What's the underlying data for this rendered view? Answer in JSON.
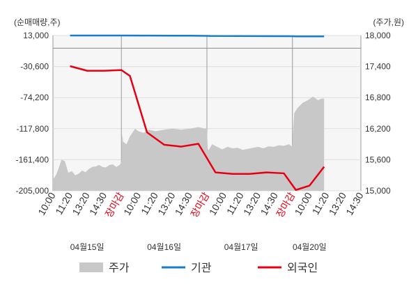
{
  "chart_data": {
    "type": "line",
    "y_left_unit": "(순매매량,주)",
    "y_right_unit": "(주가,원)",
    "y_left_ticks": [
      "13,000",
      "-30,600",
      "-74,200",
      "-117,800",
      "-161,400",
      "-205,000"
    ],
    "y_right_ticks": [
      "18,000",
      "17,400",
      "16,800",
      "16,200",
      "15,600",
      "15,000"
    ],
    "ylim_left": [
      -205000,
      13000
    ],
    "ylim_right": [
      15000,
      18000
    ],
    "x_ticks": [
      "10:00",
      "11:20",
      "13:20",
      "14:30",
      "장마감",
      "10:00",
      "11:20",
      "13:20",
      "14:30",
      "장마감",
      "10:00",
      "11:20",
      "13:20",
      "14:30",
      "장마감",
      "10:00",
      "11:20",
      "13:20",
      "14:30"
    ],
    "dates": [
      "04월15일",
      "04월16일",
      "04월17일",
      "04월20일"
    ],
    "grid": true,
    "legend_position": "bottom",
    "series": [
      {
        "name": "주가",
        "kind": "area",
        "axis": "right",
        "color": "#c8c8c8",
        "x": [
          0,
          0.2,
          0.35,
          0.5,
          0.7,
          0.9,
          1.1,
          1.3,
          1.5,
          1.7,
          1.9,
          2.1,
          2.3,
          2.5,
          2.7,
          2.9,
          3.1,
          3.3,
          3.5,
          3.7,
          3.9,
          4.0,
          4.05,
          4.1,
          4.3,
          4.5,
          4.8,
          5.0,
          5.3,
          5.6,
          6.0,
          6.5,
          7.0,
          7.5,
          8.0,
          8.5,
          8.9,
          9.0,
          9.05,
          9.1,
          9.3,
          9.6,
          9.9,
          10.2,
          10.5,
          10.8,
          11.1,
          11.4,
          11.7,
          12.0,
          12.3,
          12.6,
          12.9,
          13.2,
          13.5,
          13.8,
          13.95,
          14.0,
          14.05,
          14.1,
          14.3,
          14.6,
          14.9,
          15.2,
          15.5,
          15.7,
          15.85
        ],
        "values": [
          15210,
          15320,
          15450,
          15600,
          15570,
          15350,
          15380,
          15300,
          15330,
          15390,
          15360,
          15420,
          15460,
          15470,
          15500,
          15460,
          15450,
          15500,
          15510,
          15460,
          15500,
          15560,
          16100,
          15950,
          15900,
          16050,
          16200,
          16150,
          16120,
          16180,
          16150,
          16180,
          16200,
          16180,
          16200,
          16230,
          16200,
          16220,
          15820,
          15780,
          15900,
          15850,
          15800,
          15850,
          15820,
          15830,
          15790,
          15810,
          15830,
          15850,
          15820,
          15860,
          15850,
          15880,
          15870,
          15900,
          15860,
          15870,
          16200,
          16500,
          16600,
          16700,
          16750,
          16820,
          16750,
          16780,
          16780
        ]
      },
      {
        "name": "기관",
        "kind": "line",
        "axis": "left",
        "color": "#1a7cc9",
        "x": [
          1,
          3.8,
          4.1,
          8.0,
          9.0,
          9.2,
          14.0,
          14.2,
          15.85
        ],
        "values": [
          13000,
          13000,
          13000,
          12700,
          12500,
          12350,
          12000,
          11800,
          11800
        ]
      },
      {
        "name": "외국인",
        "kind": "line",
        "axis": "left",
        "color": "#e60012",
        "x": [
          1,
          2,
          3,
          4,
          4.5,
          5.5,
          6.5,
          7.5,
          8.5,
          9.5,
          10.5,
          11.5,
          12.5,
          13.5,
          14.2,
          15.0,
          15.85
        ],
        "values": [
          -30000,
          -36500,
          -36500,
          -35500,
          -43700,
          -123000,
          -140400,
          -143000,
          -139000,
          -179200,
          -181300,
          -181300,
          -179200,
          -180500,
          -203900,
          -197700,
          -171300
        ]
      }
    ]
  }
}
